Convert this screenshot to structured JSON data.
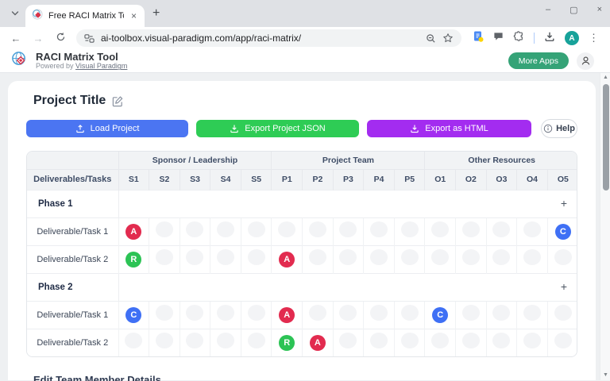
{
  "browser": {
    "tab_title": "Free RACI Matrix Tool | Assign R",
    "close_tab_label": "×",
    "new_tab_label": "+",
    "url": "ai-toolbox.visual-paradigm.com/app/raci-matrix/",
    "avatar_letter": "A",
    "window_controls": {
      "minimize": "–",
      "maximize": "▢",
      "close": "×"
    }
  },
  "app_header": {
    "title": "RACI Matrix Tool",
    "powered_prefix": "Powered by ",
    "powered_link": "Visual Paradigm",
    "more_apps_label": "More Apps"
  },
  "page": {
    "title": "Project Title",
    "buttons": {
      "load": "Load Project",
      "export_json": "Export Project JSON",
      "export_html": "Export as HTML",
      "help": "Help"
    },
    "section_heading": "Edit Team Member Details"
  },
  "matrix": {
    "first_col_header": "Deliverables/Tasks",
    "groups": [
      {
        "label": "Sponsor / Leadership",
        "cols": [
          "S1",
          "S2",
          "S3",
          "S4",
          "S5"
        ]
      },
      {
        "label": "Project Team",
        "cols": [
          "P1",
          "P2",
          "P3",
          "P4",
          "P5"
        ]
      },
      {
        "label": "Other Resources",
        "cols": [
          "O1",
          "O2",
          "O3",
          "O4",
          "O5"
        ]
      }
    ],
    "add_task_label": "+",
    "phases": [
      {
        "name": "Phase 1",
        "tasks": [
          {
            "name": "Deliverable/Task 1",
            "assignments": {
              "S1": "A",
              "O5": "C"
            }
          },
          {
            "name": "Deliverable/Task 2",
            "assignments": {
              "S1": "R",
              "P1": "A"
            }
          }
        ]
      },
      {
        "name": "Phase 2",
        "tasks": [
          {
            "name": "Deliverable/Task 1",
            "assignments": {
              "S1": "C",
              "P1": "A",
              "O1": "C"
            }
          },
          {
            "name": "Deliverable/Task 2",
            "assignments": {
              "P1": "R",
              "P2": "A"
            }
          }
        ]
      }
    ],
    "badge_colors": {
      "A": "#e22b4f",
      "R": "#2cc355",
      "C": "#3f70f5"
    }
  },
  "colors": {
    "accent_blue": "#4b75f2",
    "accent_green": "#2ecc55",
    "accent_purple": "#a32cf0",
    "brand_green": "#35a377"
  }
}
